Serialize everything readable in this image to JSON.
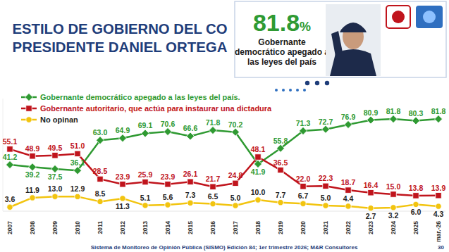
{
  "chart_data": {
    "type": "line",
    "title": "ESTILO DE GOBIERNO DEL CO PRESIDENTE DANIEL ORTEGA",
    "categories": [
      "2007",
      "2008",
      "2009",
      "2010",
      "2011",
      "2012",
      "2013",
      "2014",
      "2015",
      "2016",
      "2017",
      "2018",
      "2019",
      "2020",
      "2021",
      "2022",
      "2023",
      "2024",
      "2025",
      "mar.-26"
    ],
    "series": [
      {
        "name": "Gobernante  democrático apegado a las leyes del país.",
        "color": "#2f9a32",
        "marker": "diamond",
        "values": [
          41.2,
          39.2,
          37.5,
          36.1,
          63.0,
          64.9,
          69.1,
          70.6,
          66.6,
          71.8,
          70.2,
          41.9,
          55.8,
          71.3,
          72.7,
          76.9,
          80.9,
          81.8,
          80.3,
          81.8
        ],
        "value_labels": [
          "41.2",
          "39.2",
          "37.5",
          "36.1",
          "63.0",
          "64.9",
          "69.1",
          "70.6",
          "66.6",
          "71.8",
          "70.2",
          "41.9",
          "55.8",
          "71.3",
          "72.7",
          "76.9",
          "80.9",
          "81.8",
          "80.3",
          "81.8"
        ]
      },
      {
        "name": "Gobernante autoritario, que actúa para instaurar una dictadura",
        "color": "#c0141c",
        "marker": "square",
        "values": [
          55.1,
          48.9,
          49.5,
          51.0,
          28.5,
          23.9,
          25.9,
          23.9,
          26.1,
          21.7,
          24.8,
          48.1,
          36.5,
          22.0,
          22.3,
          18.7,
          16.4,
          15.0,
          13.8,
          13.9
        ],
        "value_labels": [
          "55.1",
          "48.9",
          "49.5",
          "51.0",
          "28.5",
          "23.9",
          "25.9",
          "23.9",
          "26.1",
          "21.7",
          "24.8",
          "48.1",
          "36.5",
          "22.0",
          "22.3",
          "18.7",
          "16.4",
          "15.0",
          "13.8",
          "13.9"
        ]
      },
      {
        "name": "No opinan",
        "color": "#f2c40f",
        "marker": "circle",
        "values": [
          3.6,
          11.9,
          13.0,
          12.9,
          8.5,
          11.3,
          5.1,
          5.6,
          7.3,
          6.5,
          5.0,
          10.0,
          7.7,
          6.7,
          5.0,
          4.4,
          2.7,
          3.2,
          6.0,
          4.3
        ],
        "value_labels": [
          "3.6",
          "11.9",
          "13.0",
          "12.9",
          "8.5",
          "11.3",
          "5.1",
          "5.6",
          "7.3",
          "6.5",
          "5.0",
          "10.0",
          "7.7",
          "6.7",
          "5.0",
          "4.4",
          "2.7",
          "3.2",
          "6.0",
          "4.3"
        ]
      }
    ],
    "ylim": [
      0,
      100
    ],
    "yticks": [],
    "grid": false,
    "legend": "top-left",
    "data_labels": true,
    "tick_labels": "x"
  },
  "highlight": {
    "value_text": "81.8%",
    "label": "Gobernante democrático apegado a las leyes del país"
  },
  "footer": {
    "source": "Sistema de Monitoreo de Opinión Pública (SISMO) Edición 84; 1er trimestre 2026; M&R Consultores",
    "page": 30
  }
}
